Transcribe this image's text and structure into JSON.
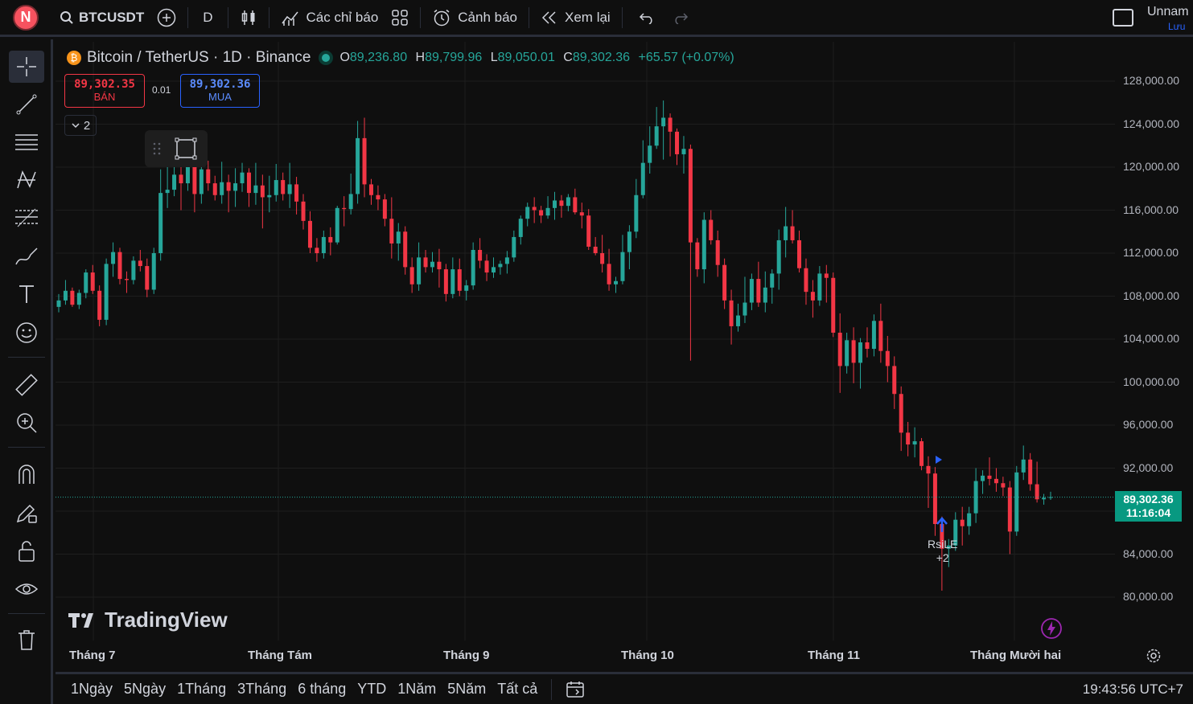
{
  "topbar": {
    "avatar_letter": "N",
    "symbol": "BTCUSDT",
    "interval": "D",
    "indicators_label": "Các chỉ báo",
    "alerts_label": "Cảnh báo",
    "replay_label": "Xem lại",
    "layout_name": "Unnam",
    "save_label": "Lưu"
  },
  "legend": {
    "title": "Bitcoin / TetherUS · 1D · Binance",
    "o_key": "O",
    "o_val": "89,236.80",
    "h_key": "H",
    "h_val": "89,799.96",
    "l_key": "L",
    "l_val": "89,050.01",
    "c_key": "C",
    "c_val": "89,302.36",
    "change": "+65.57 (+0.07%)"
  },
  "trade": {
    "sell_price": "89,302.35",
    "sell_label": "BÁN",
    "spread": "0.01",
    "buy_price": "89,302.36",
    "buy_label": "MUA",
    "collapsed_count": "2"
  },
  "price_axis": [
    "128,000.00",
    "124,000.00",
    "120,000.00",
    "116,000.00",
    "112,000.00",
    "108,000.00",
    "104,000.00",
    "100,000.00",
    "96,000.00",
    "92,000.00",
    "84,000.00",
    "80,000.00"
  ],
  "current": {
    "price": "89,302.36",
    "countdown": "11:16:04"
  },
  "time_axis": [
    "Tháng 7",
    "Tháng Tám",
    "Tháng 9",
    "Tháng 10",
    "Tháng 11",
    "Tháng Mười hai"
  ],
  "signal": {
    "name": "RsiLE",
    "extra": "+2"
  },
  "watermark": "TradingView",
  "ranges": [
    "1Ngày",
    "5Ngày",
    "1Tháng",
    "3Tháng",
    "6 tháng",
    "YTD",
    "1Năm",
    "5Năm",
    "Tất cả"
  ],
  "clock": "19:43:56 UTC+7",
  "colors": {
    "up": "#26a69a",
    "down": "#f23645",
    "bg": "#0f0f0f",
    "grid": "#1e1e1e"
  },
  "chart_data": {
    "type": "candlestick",
    "ylim": [
      78000,
      130000
    ],
    "candles": [
      [
        107000,
        108200,
        106500,
        107600
      ],
      [
        107600,
        109500,
        107200,
        108500
      ],
      [
        108500,
        108800,
        107000,
        107200
      ],
      [
        107200,
        108600,
        106800,
        108300
      ],
      [
        108300,
        110500,
        107800,
        110200
      ],
      [
        110200,
        110900,
        108200,
        108500
      ],
      [
        108500,
        109000,
        105200,
        105800
      ],
      [
        105800,
        111500,
        105300,
        111000
      ],
      [
        111000,
        113000,
        109800,
        112100
      ],
      [
        112100,
        112500,
        109100,
        109600
      ],
      [
        109600,
        110300,
        108300,
        109500
      ],
      [
        109500,
        111700,
        109100,
        111300
      ],
      [
        111300,
        112300,
        110300,
        110800
      ],
      [
        110800,
        111500,
        107900,
        108600
      ],
      [
        108600,
        112500,
        108200,
        112000
      ],
      [
        112000,
        119800,
        111300,
        117600
      ],
      [
        117600,
        120200,
        116200,
        117900
      ],
      [
        117900,
        123300,
        117300,
        119300
      ],
      [
        119300,
        120900,
        116000,
        118500
      ],
      [
        118500,
        122000,
        117800,
        120600
      ],
      [
        120600,
        121000,
        115800,
        117500
      ],
      [
        117500,
        121300,
        116600,
        119800
      ],
      [
        119800,
        120600,
        117800,
        118500
      ],
      [
        118500,
        119200,
        116900,
        117400
      ],
      [
        117400,
        120500,
        116600,
        118600
      ],
      [
        118600,
        119300,
        115800,
        117800
      ],
      [
        117800,
        119900,
        116300,
        118500
      ],
      [
        118500,
        120400,
        117700,
        119500
      ],
      [
        119500,
        119900,
        116300,
        117600
      ],
      [
        117600,
        120400,
        116500,
        118300
      ],
      [
        118300,
        119300,
        114300,
        117200
      ],
      [
        117200,
        119200,
        115800,
        117400
      ],
      [
        117400,
        120300,
        116800,
        118800
      ],
      [
        118800,
        119500,
        116900,
        117500
      ],
      [
        117500,
        120400,
        116200,
        118400
      ],
      [
        118400,
        119100,
        115600,
        116800
      ],
      [
        116800,
        117500,
        114200,
        115000
      ],
      [
        115000,
        115900,
        112000,
        112500
      ],
      [
        112500,
        113400,
        111200,
        112000
      ],
      [
        112000,
        114100,
        111500,
        113500
      ],
      [
        113500,
        114400,
        111800,
        113000
      ],
      [
        113000,
        116400,
        112800,
        116200
      ],
      [
        116200,
        117300,
        114500,
        116100
      ],
      [
        116100,
        119400,
        115600,
        117500
      ],
      [
        117500,
        124300,
        116600,
        122700
      ],
      [
        122700,
        124600,
        117200,
        118400
      ],
      [
        118400,
        118900,
        116500,
        117400
      ],
      [
        117400,
        118300,
        116000,
        117000
      ],
      [
        117000,
        117500,
        114500,
        115200
      ],
      [
        115200,
        117200,
        111500,
        112900
      ],
      [
        112900,
        114800,
        111300,
        114000
      ],
      [
        114000,
        114500,
        110000,
        110700
      ],
      [
        110700,
        111600,
        108300,
        109100
      ],
      [
        109100,
        113000,
        108500,
        111600
      ],
      [
        111600,
        112300,
        110200,
        110700
      ],
      [
        110700,
        112100,
        110200,
        111200
      ],
      [
        111200,
        112400,
        108800,
        110500
      ],
      [
        110500,
        111000,
        107500,
        108200
      ],
      [
        108200,
        111600,
        107800,
        110500
      ],
      [
        110500,
        111500,
        108000,
        108500
      ],
      [
        108500,
        109500,
        107600,
        109000
      ],
      [
        109000,
        113000,
        108600,
        112300
      ],
      [
        112300,
        113400,
        110600,
        111300
      ],
      [
        111300,
        111900,
        109400,
        110200
      ],
      [
        110200,
        111600,
        109700,
        110700
      ],
      [
        110700,
        111300,
        110000,
        111000
      ],
      [
        111000,
        112200,
        110100,
        111600
      ],
      [
        111600,
        114100,
        111200,
        113500
      ],
      [
        113500,
        115500,
        112800,
        115200
      ],
      [
        115200,
        116700,
        114500,
        116300
      ],
      [
        116300,
        117200,
        114800,
        116000
      ],
      [
        116000,
        116400,
        114800,
        115500
      ],
      [
        115500,
        117300,
        115200,
        116200
      ],
      [
        116200,
        117700,
        115100,
        116900
      ],
      [
        116900,
        117400,
        115300,
        116400
      ],
      [
        116400,
        117500,
        115900,
        117200
      ],
      [
        117200,
        118000,
        115600,
        115800
      ],
      [
        115800,
        116700,
        114300,
        115500
      ],
      [
        115500,
        116100,
        112300,
        112600
      ],
      [
        112600,
        113500,
        111800,
        112000
      ],
      [
        112000,
        113700,
        110200,
        111000
      ],
      [
        111000,
        112400,
        108500,
        109100
      ],
      [
        109100,
        109800,
        108300,
        109400
      ],
      [
        109400,
        113700,
        109100,
        112100
      ],
      [
        112100,
        114600,
        110500,
        114000
      ],
      [
        114000,
        118900,
        113400,
        117400
      ],
      [
        117400,
        122500,
        117100,
        120400
      ],
      [
        120400,
        123800,
        119400,
        122000
      ],
      [
        122000,
        125600,
        121700,
        123800
      ],
      [
        123800,
        126200,
        120700,
        124600
      ],
      [
        124600,
        125000,
        121000,
        123300
      ],
      [
        123300,
        123600,
        120200,
        121200
      ],
      [
        121200,
        122900,
        119400,
        121700
      ],
      [
        121700,
        122100,
        102000,
        113000
      ],
      [
        113000,
        113400,
        109800,
        110500
      ],
      [
        110500,
        115800,
        109200,
        115100
      ],
      [
        115100,
        116000,
        112800,
        113200
      ],
      [
        113200,
        114100,
        109800,
        110900
      ],
      [
        110900,
        111500,
        106800,
        107600
      ],
      [
        107600,
        108600,
        103500,
        105200
      ],
      [
        105200,
        107300,
        104700,
        106200
      ],
      [
        106200,
        109800,
        105500,
        107400
      ],
      [
        107400,
        110100,
        106700,
        109600
      ],
      [
        109600,
        111200,
        107000,
        107400
      ],
      [
        107400,
        110300,
        106500,
        108800
      ],
      [
        108800,
        110500,
        107300,
        110100
      ],
      [
        110100,
        114200,
        108600,
        113200
      ],
      [
        113200,
        116300,
        111600,
        114500
      ],
      [
        114500,
        116000,
        112900,
        113200
      ],
      [
        113200,
        114100,
        110200,
        110600
      ],
      [
        110600,
        111500,
        107200,
        108400
      ],
      [
        108400,
        109500,
        106000,
        107600
      ],
      [
        107600,
        110800,
        107100,
        110100
      ],
      [
        110100,
        110900,
        107400,
        109700
      ],
      [
        109700,
        110200,
        104200,
        104600
      ],
      [
        104600,
        106400,
        99000,
        101500
      ],
      [
        101500,
        104600,
        100800,
        103900
      ],
      [
        103900,
        105100,
        99900,
        101800
      ],
      [
        101800,
        104100,
        99400,
        103700
      ],
      [
        103700,
        105100,
        102300,
        103100
      ],
      [
        103100,
        106300,
        102400,
        105700
      ],
      [
        105700,
        107300,
        101800,
        102900
      ],
      [
        102900,
        104300,
        100000,
        101500
      ],
      [
        101500,
        102400,
        97500,
        98900
      ],
      [
        98900,
        99600,
        93600,
        95300
      ],
      [
        95300,
        96300,
        93100,
        94200
      ],
      [
        94200,
        95800,
        93000,
        94500
      ],
      [
        94500,
        94800,
        91800,
        92200
      ],
      [
        92200,
        93100,
        88300,
        91500
      ],
      [
        91500,
        92100,
        85700,
        86800
      ],
      [
        86800,
        87500,
        80600,
        84500
      ],
      [
        84500,
        85400,
        82800,
        84800
      ],
      [
        84800,
        87900,
        84300,
        87200
      ],
      [
        87200,
        88400,
        84800,
        86600
      ],
      [
        86600,
        88400,
        85800,
        87800
      ],
      [
        87800,
        92000,
        86900,
        90800
      ],
      [
        90800,
        91800,
        89600,
        91300
      ],
      [
        91300,
        93000,
        90400,
        91000
      ],
      [
        91000,
        92000,
        89800,
        90600
      ],
      [
        90600,
        91200,
        89400,
        90200
      ],
      [
        90200,
        90800,
        84000,
        86100
      ],
      [
        86100,
        92200,
        85700,
        91600
      ],
      [
        91600,
        94100,
        90900,
        92800
      ],
      [
        92800,
        93400,
        89900,
        90500
      ],
      [
        90500,
        92600,
        88800,
        89100
      ],
      [
        89100,
        89600,
        88600,
        89236
      ],
      [
        89236,
        89800,
        89050,
        89302
      ]
    ]
  }
}
